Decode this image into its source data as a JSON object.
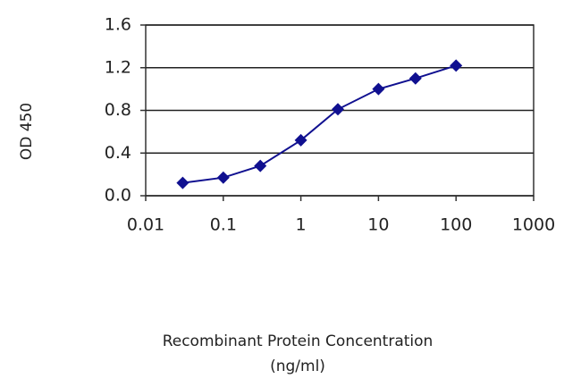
{
  "chart_data": {
    "type": "line",
    "ylabel": "OD 450",
    "xlabel": [
      "Recombinant Protein Concentration",
      "(ng/ml)"
    ],
    "x": [
      0.03,
      0.1,
      0.3,
      1,
      3,
      10,
      30,
      100
    ],
    "values": [
      0.12,
      0.17,
      0.28,
      0.52,
      0.81,
      1.0,
      1.1,
      1.22
    ],
    "color": "#101090",
    "xscale": "log",
    "xlim": [
      0.01,
      1000
    ],
    "xticks": [
      0.01,
      0.1,
      1,
      10,
      100,
      1000
    ],
    "ylim": [
      0,
      1.6
    ],
    "yticks": [
      {
        "value": 0,
        "label": "0.0"
      },
      0.4,
      0.8,
      1.2,
      1.6
    ],
    "grid": true
  }
}
